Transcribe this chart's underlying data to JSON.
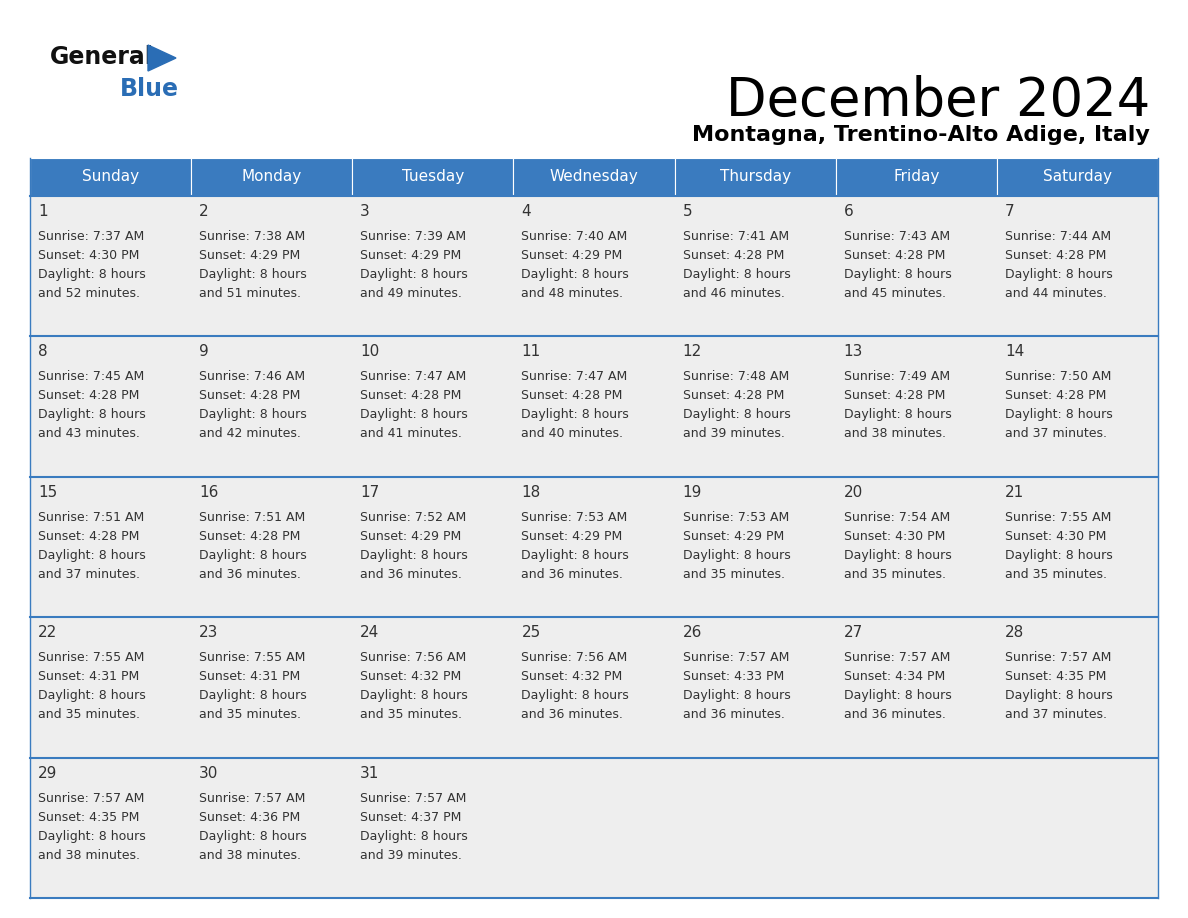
{
  "title": "December 2024",
  "subtitle": "Montagna, Trentino-Alto Adige, Italy",
  "days_of_week": [
    "Sunday",
    "Monday",
    "Tuesday",
    "Wednesday",
    "Thursday",
    "Friday",
    "Saturday"
  ],
  "header_bg": "#3a7bbf",
  "header_text": "#ffffff",
  "cell_bg": "#eeeeee",
  "border_color": "#3a7bbf",
  "text_color": "#333333",
  "title_color": "#000000",
  "subtitle_color": "#000000",
  "logo_general_color": "#111111",
  "logo_blue_color": "#2a6db5",
  "calendar_data": [
    [
      {
        "day": 1,
        "sunrise": "7:37 AM",
        "sunset": "4:30 PM",
        "daylight": "8 hours and 52 minutes."
      },
      {
        "day": 2,
        "sunrise": "7:38 AM",
        "sunset": "4:29 PM",
        "daylight": "8 hours and 51 minutes."
      },
      {
        "day": 3,
        "sunrise": "7:39 AM",
        "sunset": "4:29 PM",
        "daylight": "8 hours and 49 minutes."
      },
      {
        "day": 4,
        "sunrise": "7:40 AM",
        "sunset": "4:29 PM",
        "daylight": "8 hours and 48 minutes."
      },
      {
        "day": 5,
        "sunrise": "7:41 AM",
        "sunset": "4:28 PM",
        "daylight": "8 hours and 46 minutes."
      },
      {
        "day": 6,
        "sunrise": "7:43 AM",
        "sunset": "4:28 PM",
        "daylight": "8 hours and 45 minutes."
      },
      {
        "day": 7,
        "sunrise": "7:44 AM",
        "sunset": "4:28 PM",
        "daylight": "8 hours and 44 minutes."
      }
    ],
    [
      {
        "day": 8,
        "sunrise": "7:45 AM",
        "sunset": "4:28 PM",
        "daylight": "8 hours and 43 minutes."
      },
      {
        "day": 9,
        "sunrise": "7:46 AM",
        "sunset": "4:28 PM",
        "daylight": "8 hours and 42 minutes."
      },
      {
        "day": 10,
        "sunrise": "7:47 AM",
        "sunset": "4:28 PM",
        "daylight": "8 hours and 41 minutes."
      },
      {
        "day": 11,
        "sunrise": "7:47 AM",
        "sunset": "4:28 PM",
        "daylight": "8 hours and 40 minutes."
      },
      {
        "day": 12,
        "sunrise": "7:48 AM",
        "sunset": "4:28 PM",
        "daylight": "8 hours and 39 minutes."
      },
      {
        "day": 13,
        "sunrise": "7:49 AM",
        "sunset": "4:28 PM",
        "daylight": "8 hours and 38 minutes."
      },
      {
        "day": 14,
        "sunrise": "7:50 AM",
        "sunset": "4:28 PM",
        "daylight": "8 hours and 37 minutes."
      }
    ],
    [
      {
        "day": 15,
        "sunrise": "7:51 AM",
        "sunset": "4:28 PM",
        "daylight": "8 hours and 37 minutes."
      },
      {
        "day": 16,
        "sunrise": "7:51 AM",
        "sunset": "4:28 PM",
        "daylight": "8 hours and 36 minutes."
      },
      {
        "day": 17,
        "sunrise": "7:52 AM",
        "sunset": "4:29 PM",
        "daylight": "8 hours and 36 minutes."
      },
      {
        "day": 18,
        "sunrise": "7:53 AM",
        "sunset": "4:29 PM",
        "daylight": "8 hours and 36 minutes."
      },
      {
        "day": 19,
        "sunrise": "7:53 AM",
        "sunset": "4:29 PM",
        "daylight": "8 hours and 35 minutes."
      },
      {
        "day": 20,
        "sunrise": "7:54 AM",
        "sunset": "4:30 PM",
        "daylight": "8 hours and 35 minutes."
      },
      {
        "day": 21,
        "sunrise": "7:55 AM",
        "sunset": "4:30 PM",
        "daylight": "8 hours and 35 minutes."
      }
    ],
    [
      {
        "day": 22,
        "sunrise": "7:55 AM",
        "sunset": "4:31 PM",
        "daylight": "8 hours and 35 minutes."
      },
      {
        "day": 23,
        "sunrise": "7:55 AM",
        "sunset": "4:31 PM",
        "daylight": "8 hours and 35 minutes."
      },
      {
        "day": 24,
        "sunrise": "7:56 AM",
        "sunset": "4:32 PM",
        "daylight": "8 hours and 35 minutes."
      },
      {
        "day": 25,
        "sunrise": "7:56 AM",
        "sunset": "4:32 PM",
        "daylight": "8 hours and 36 minutes."
      },
      {
        "day": 26,
        "sunrise": "7:57 AM",
        "sunset": "4:33 PM",
        "daylight": "8 hours and 36 minutes."
      },
      {
        "day": 27,
        "sunrise": "7:57 AM",
        "sunset": "4:34 PM",
        "daylight": "8 hours and 36 minutes."
      },
      {
        "day": 28,
        "sunrise": "7:57 AM",
        "sunset": "4:35 PM",
        "daylight": "8 hours and 37 minutes."
      }
    ],
    [
      {
        "day": 29,
        "sunrise": "7:57 AM",
        "sunset": "4:35 PM",
        "daylight": "8 hours and 38 minutes."
      },
      {
        "day": 30,
        "sunrise": "7:57 AM",
        "sunset": "4:36 PM",
        "daylight": "8 hours and 38 minutes."
      },
      {
        "day": 31,
        "sunrise": "7:57 AM",
        "sunset": "4:37 PM",
        "daylight": "8 hours and 39 minutes."
      },
      null,
      null,
      null,
      null
    ]
  ]
}
